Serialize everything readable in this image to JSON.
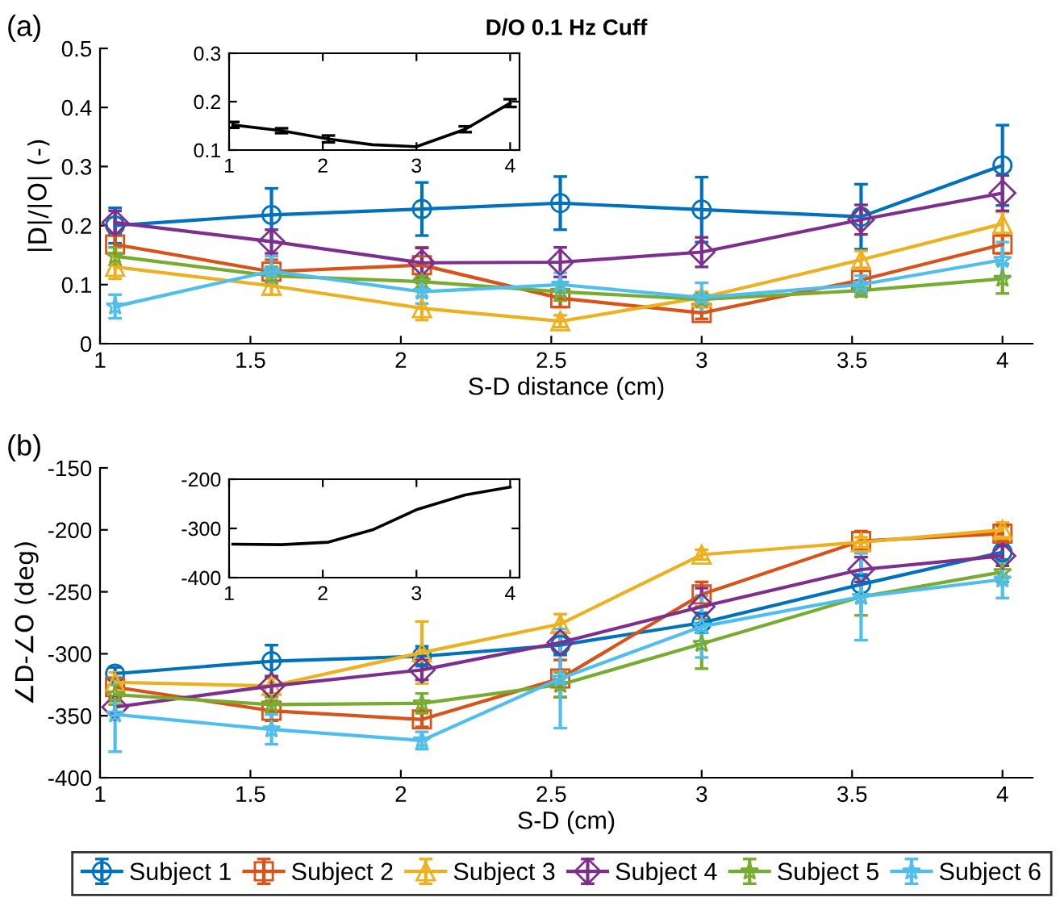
{
  "chart_data": [
    {
      "type": "line",
      "title": "D/O 0.1 Hz Cuff",
      "ylabel": "|D|/|O| (-)",
      "xlabel": "S-D distance (cm)",
      "annotations": [
        "(a)"
      ],
      "legend": "bottom",
      "x": [
        1.05,
        1.57,
        2.07,
        2.53,
        3.0,
        3.53,
        4.0
      ],
      "xlim": [
        1,
        4.1
      ],
      "xticks": [
        1,
        1.5,
        2,
        2.5,
        3,
        3.5,
        4
      ],
      "ylim": [
        0,
        0.5
      ],
      "yticks": [
        0,
        0.1,
        0.2,
        0.3,
        0.4,
        0.5
      ],
      "grid": false,
      "series": [
        {
          "name": "Subject 1",
          "color": "#0072bd",
          "marker": "circle",
          "values": [
            0.2,
            0.218,
            0.228,
            0.238,
            0.227,
            0.215,
            0.302
          ],
          "errors": [
            0.03,
            0.045,
            0.045,
            0.045,
            0.055,
            0.055,
            0.068
          ]
        },
        {
          "name": "Subject 2",
          "color": "#d95319",
          "marker": "square",
          "values": [
            0.168,
            0.122,
            0.133,
            0.077,
            0.052,
            0.108,
            0.168
          ],
          "errors": [
            0.015,
            0.02,
            0.03,
            0.015,
            0.01,
            0.02,
            0.015
          ]
        },
        {
          "name": "Subject 3",
          "color": "#edb120",
          "marker": "triangle",
          "values": [
            0.13,
            0.098,
            0.06,
            0.038,
            0.078,
            0.142,
            0.203
          ],
          "errors": [
            0.02,
            0.015,
            0.02,
            0.01,
            0.01,
            0.015,
            0.02
          ]
        },
        {
          "name": "Subject 4",
          "color": "#7e2f8e",
          "marker": "diamond",
          "values": [
            0.205,
            0.173,
            0.137,
            0.138,
            0.155,
            0.21,
            0.255
          ],
          "errors": [
            0.02,
            0.02,
            0.025,
            0.025,
            0.025,
            0.025,
            0.03
          ]
        },
        {
          "name": "Subject 5",
          "color": "#77ac30",
          "marker": "star",
          "values": [
            0.148,
            0.115,
            0.105,
            0.088,
            0.075,
            0.09,
            0.11
          ],
          "errors": [
            0.015,
            0.015,
            0.01,
            0.015,
            0.01,
            0.01,
            0.025
          ]
        },
        {
          "name": "Subject 6",
          "color": "#4dbeee",
          "marker": "star",
          "values": [
            0.063,
            0.123,
            0.088,
            0.1,
            0.078,
            0.1,
            0.142
          ],
          "errors": [
            0.02,
            0.025,
            0.02,
            0.02,
            0.025,
            0.015,
            0.03
          ]
        }
      ]
    },
    {
      "type": "line",
      "x": [
        1.04,
        1.56,
        2.06,
        2.53,
        3.0,
        3.52,
        4.0
      ],
      "xlim": [
        1,
        4.1
      ],
      "xticks": [
        1,
        2,
        3,
        4
      ],
      "ylim": [
        0.1,
        0.3
      ],
      "yticks": [
        0.1,
        0.2,
        0.3
      ],
      "grid": false,
      "series": [
        {
          "color": "#000000",
          "marker": "none",
          "values": [
            0.152,
            0.14,
            0.123,
            0.111,
            0.107,
            0.143,
            0.197
          ],
          "errors": [
            0.006,
            0.005,
            0.007,
            null,
            null,
            0.006,
            0.008
          ]
        }
      ]
    },
    {
      "type": "line",
      "ylabel": "∠D-∠O (deg)",
      "xlabel": "S-D (cm)",
      "annotations": [
        "(b)"
      ],
      "x": [
        1.05,
        1.57,
        2.07,
        2.53,
        3.0,
        3.53,
        4.0
      ],
      "xlim": [
        1,
        4.1
      ],
      "xticks": [
        1,
        1.5,
        2,
        2.5,
        3,
        3.5,
        4
      ],
      "ylim": [
        -400,
        -150
      ],
      "yticks": [
        -400,
        -350,
        -300,
        -250,
        -200,
        -150
      ],
      "grid": false,
      "series": [
        {
          "color": "#0072bd",
          "marker": "circle",
          "values": [
            -316,
            -306,
            -302,
            -293,
            -275,
            -244,
            -218
          ],
          "errors": [
            5,
            13,
            8,
            8,
            8,
            8,
            6
          ]
        },
        {
          "color": "#d95319",
          "marker": "square",
          "values": [
            -327,
            -346,
            -353,
            -320,
            -252,
            -209,
            -203
          ],
          "errors": [
            8,
            8,
            6,
            15,
            10,
            8,
            6
          ]
        },
        {
          "color": "#edb120",
          "marker": "triangle",
          "values": [
            -323,
            -326,
            -299,
            -276,
            -220,
            -210,
            -200
          ],
          "errors": [
            8,
            6,
            25,
            8,
            4,
            4,
            6
          ]
        },
        {
          "color": "#7e2f8e",
          "marker": "diamond",
          "values": [
            -343,
            -326,
            -313,
            -291,
            -262,
            -232,
            -221
          ],
          "errors": [
            5,
            8,
            8,
            8,
            15,
            10,
            8
          ]
        },
        {
          "color": "#77ac30",
          "marker": "star",
          "values": [
            -333,
            -341,
            -340,
            -325,
            -292,
            -254,
            -234
          ],
          "errors": [
            8,
            6,
            8,
            10,
            20,
            15,
            8
          ]
        },
        {
          "color": "#4dbeee",
          "marker": "star",
          "values": [
            -349,
            -361,
            -370,
            -320,
            -278,
            -254,
            -240
          ],
          "errors": [
            30,
            12,
            7,
            40,
            25,
            35,
            15
          ]
        }
      ]
    },
    {
      "type": "line",
      "x": [
        1.04,
        1.56,
        2.06,
        2.53,
        3.0,
        3.52,
        4.0
      ],
      "xlim": [
        1,
        4.1
      ],
      "xticks": [
        1,
        2,
        3,
        4
      ],
      "ylim": [
        -400,
        -200
      ],
      "yticks": [
        -400,
        -300,
        -200
      ],
      "grid": false,
      "series": [
        {
          "color": "#000000",
          "marker": "none",
          "values": [
            -332,
            -333,
            -328,
            -303,
            -262,
            -232,
            -216
          ]
        }
      ]
    }
  ]
}
